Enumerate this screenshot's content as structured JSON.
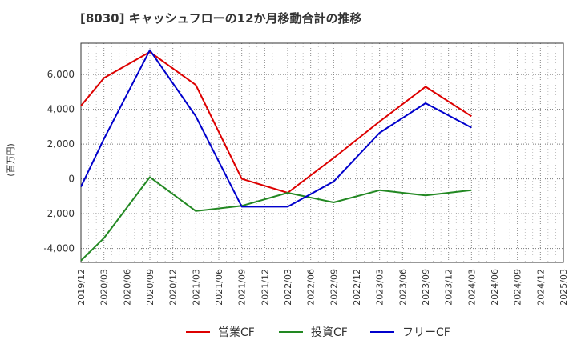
{
  "chart_data": {
    "type": "line",
    "title": "[8030]  キャッシュフローの12か月移動合計の推移",
    "ylabel": "(百万円)",
    "xlabel": "",
    "ylim": [
      -4800,
      7800
    ],
    "yticks": [
      6000,
      4000,
      2000,
      0,
      -2000,
      -4000
    ],
    "ytick_labels": [
      "6,000",
      "4,000",
      "2,000",
      "0",
      "-2,000",
      "-4,000"
    ],
    "x_ticks": [
      "2019/12",
      "2020/03",
      "2020/06",
      "2020/09",
      "2020/12",
      "2021/03",
      "2021/06",
      "2021/09",
      "2021/12",
      "2022/03",
      "2022/06",
      "2022/09",
      "2022/12",
      "2023/03",
      "2023/06",
      "2023/09",
      "2023/12",
      "2024/03",
      "2024/06",
      "2024/09",
      "2024/12",
      "2025/03"
    ],
    "grid": true,
    "legend_position": "bottom",
    "series": [
      {
        "name": "営業CF",
        "color": "#dd0000",
        "x": [
          "2019/12",
          "2020/03",
          "2020/09",
          "2021/03",
          "2021/09",
          "2022/03",
          "2022/09",
          "2023/03",
          "2023/09",
          "2024/03"
        ],
        "values": [
          4200,
          5800,
          7300,
          5400,
          0,
          -800,
          1200,
          3300,
          5300,
          3600
        ]
      },
      {
        "name": "投資CF",
        "color": "#228822",
        "x": [
          "2019/12",
          "2020/03",
          "2020/09",
          "2021/03",
          "2021/09",
          "2022/03",
          "2022/09",
          "2023/03",
          "2023/09",
          "2024/03"
        ],
        "values": [
          -4700,
          -3400,
          100,
          -1850,
          -1550,
          -800,
          -1350,
          -650,
          -950,
          -650
        ]
      },
      {
        "name": "フリーCF",
        "color": "#0000cc",
        "x": [
          "2019/12",
          "2020/03",
          "2020/09",
          "2021/03",
          "2021/09",
          "2022/03",
          "2022/09",
          "2023/03",
          "2023/09",
          "2024/03"
        ],
        "values": [
          -450,
          2300,
          7400,
          3600,
          -1600,
          -1600,
          -150,
          2650,
          4350,
          2950
        ]
      }
    ]
  }
}
